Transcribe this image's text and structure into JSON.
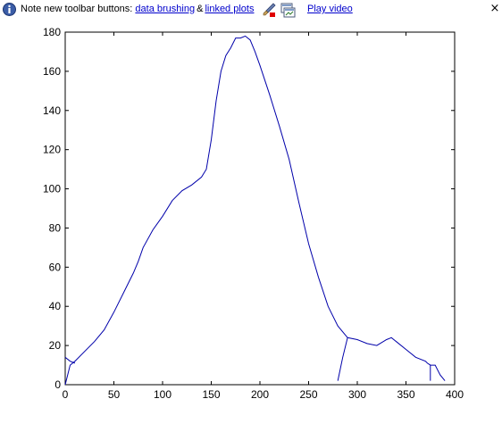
{
  "infobar": {
    "note_text": "Note new toolbar buttons:",
    "link_brushing": "data brushing",
    "amp": "&",
    "link_linked": "linked plots",
    "link_video": "Play video",
    "close": "×",
    "icons": [
      "info-icon",
      "data-brushing-icon",
      "linked-plots-icon",
      "close-icon"
    ]
  },
  "colors": {
    "line": "#0000aa",
    "axes": "#000000",
    "link": "#0000cc",
    "background": "#ffffff"
  },
  "chart_data": {
    "type": "line",
    "title": "",
    "xlabel": "",
    "ylabel": "",
    "xlim": [
      0,
      400
    ],
    "ylim": [
      0,
      180
    ],
    "grid": false,
    "xticks": [
      0,
      50,
      100,
      150,
      200,
      250,
      300,
      350,
      400
    ],
    "yticks": [
      0,
      20,
      40,
      60,
      80,
      100,
      120,
      140,
      160,
      180
    ],
    "series": [
      {
        "points": [
          [
            0,
            0
          ],
          [
            5,
            10
          ],
          [
            10,
            12
          ],
          [
            20,
            17
          ],
          [
            30,
            22
          ],
          [
            40,
            28
          ],
          [
            50,
            37
          ],
          [
            60,
            47
          ],
          [
            70,
            57
          ],
          [
            75,
            63
          ],
          [
            80,
            70
          ],
          [
            90,
            79
          ],
          [
            100,
            86
          ],
          [
            110,
            94
          ],
          [
            120,
            99
          ],
          [
            130,
            102
          ],
          [
            140,
            106
          ],
          [
            145,
            110
          ],
          [
            150,
            125
          ],
          [
            155,
            145
          ],
          [
            160,
            160
          ],
          [
            165,
            168
          ],
          [
            170,
            172
          ],
          [
            175,
            177
          ],
          [
            180,
            177
          ],
          [
            185,
            178
          ],
          [
            190,
            176
          ],
          [
            195,
            170
          ],
          [
            200,
            163
          ],
          [
            210,
            148
          ],
          [
            220,
            132
          ],
          [
            230,
            115
          ],
          [
            240,
            93
          ],
          [
            250,
            72
          ],
          [
            260,
            55
          ],
          [
            270,
            40
          ],
          [
            280,
            30
          ],
          [
            290,
            24
          ],
          [
            300,
            23
          ],
          [
            310,
            21
          ],
          [
            320,
            20
          ],
          [
            330,
            23
          ],
          [
            335,
            24
          ],
          [
            340,
            22
          ],
          [
            350,
            18
          ],
          [
            360,
            14
          ],
          [
            370,
            12
          ],
          [
            372,
            11
          ],
          [
            375,
            10
          ],
          [
            380,
            10
          ],
          [
            385,
            5
          ],
          [
            390,
            2
          ]
        ]
      },
      {
        "points": [
          [
            0,
            14
          ],
          [
            5,
            12
          ],
          [
            10,
            11
          ]
        ]
      },
      {
        "points": [
          [
            280,
            2
          ],
          [
            285,
            14
          ],
          [
            290,
            24
          ]
        ]
      },
      {
        "points": [
          [
            375,
            10
          ],
          [
            375,
            2
          ]
        ]
      }
    ]
  }
}
